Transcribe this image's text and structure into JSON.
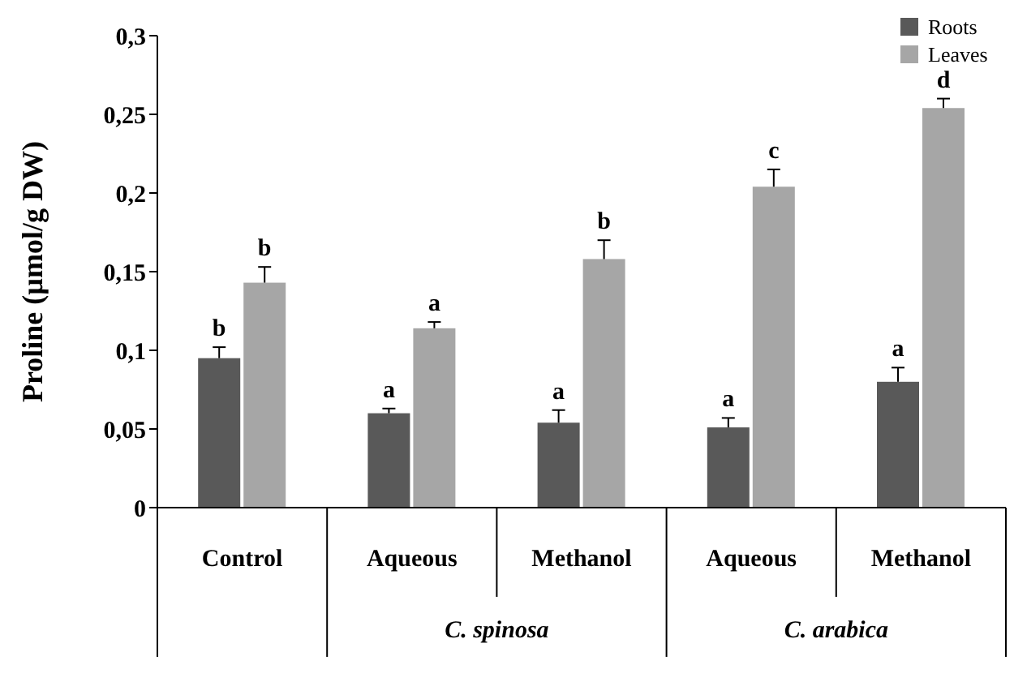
{
  "chart_data": {
    "type": "bar",
    "ylabel": "Proline  (µmol/g  DW)",
    "categories": [
      "Control",
      "Aqueous",
      "Methanol",
      "Aqueous",
      "Methanol"
    ],
    "series": [
      {
        "name": "Roots",
        "color": "#595959",
        "values": [
          0.095,
          0.06,
          0.054,
          0.051,
          0.08
        ],
        "errors": [
          0.007,
          0.003,
          0.008,
          0.006,
          0.009
        ],
        "value_labels": [
          "b",
          "a",
          "a",
          "a",
          "a"
        ]
      },
      {
        "name": "Leaves",
        "color": "#a6a6a6",
        "values": [
          0.143,
          0.114,
          0.158,
          0.204,
          0.254
        ],
        "errors": [
          0.01,
          0.004,
          0.012,
          0.011,
          0.006
        ],
        "value_labels": [
          "b",
          "a",
          "b",
          "c",
          "d"
        ]
      }
    ],
    "ylim": [
      0,
      0.3
    ],
    "yticks": [
      0,
      {
        "value": 0.05,
        "label": "0,05"
      },
      {
        "value": 0.1,
        "label": "0,1"
      },
      {
        "value": 0.15,
        "label": "0,15"
      },
      {
        "value": 0.2,
        "label": "0,2"
      },
      {
        "value": 0.25,
        "label": "0,25"
      },
      {
        "value": 0.3,
        "label": "0,3"
      }
    ],
    "annotations": [
      "C. spinosa",
      "C. arabica"
    ],
    "legend": "top right",
    "grid": false
  }
}
